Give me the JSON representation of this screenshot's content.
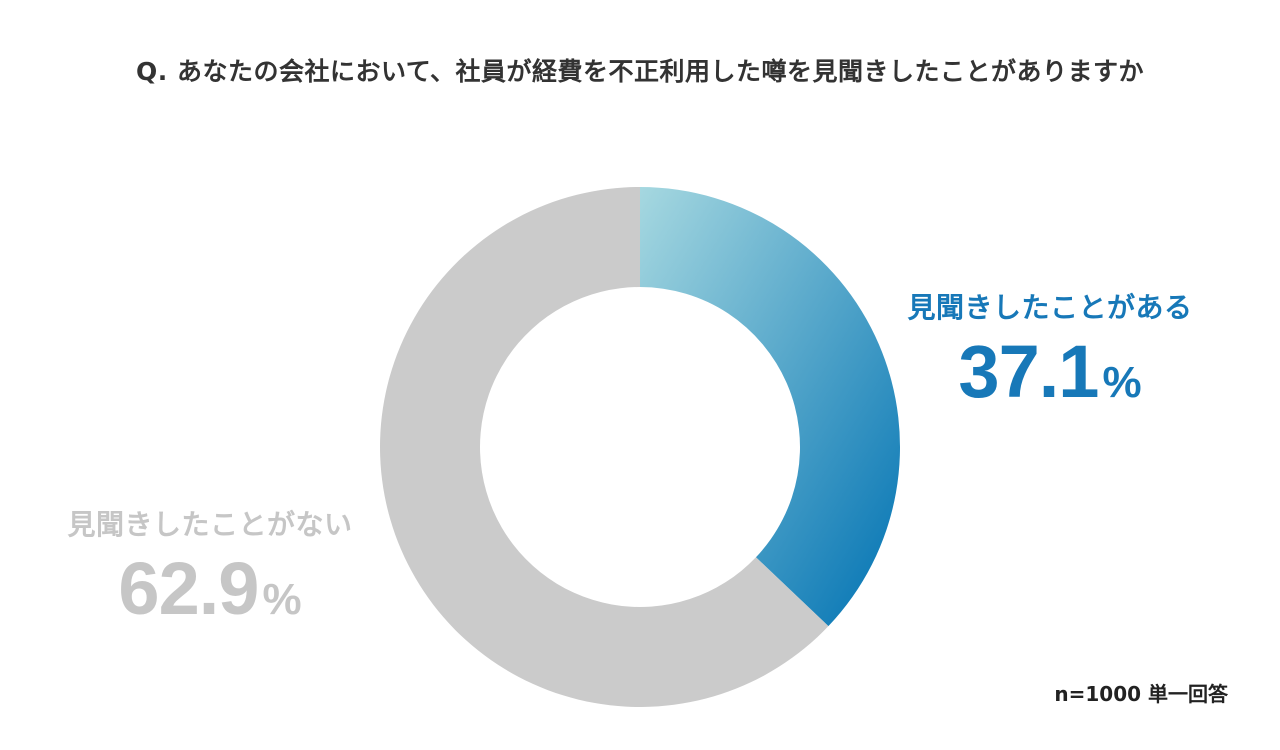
{
  "title": "Q. あなたの会社において、社員が経費を不正利用した噂を見聞きしたことがありますか",
  "note": "n=1000 単一回答",
  "colors": {
    "yes_start": "#a6d8e0",
    "yes_end": "#0072b3",
    "yes_label": "#1778b8",
    "no": "#cbcbcb",
    "no_label": "#c6c6c6"
  },
  "chart_data": {
    "type": "pie",
    "style": "donut",
    "title": "Q. あなたの会社において、社員が経費を不正利用した噂を見聞きしたことがありますか",
    "unit": "%",
    "slices": [
      {
        "label": "見聞きしたことがある",
        "value": 37.1,
        "display": "37.1",
        "unit": "%"
      },
      {
        "label": "見聞きしたことがない",
        "value": 62.9,
        "display": "62.9",
        "unit": "%"
      }
    ]
  }
}
